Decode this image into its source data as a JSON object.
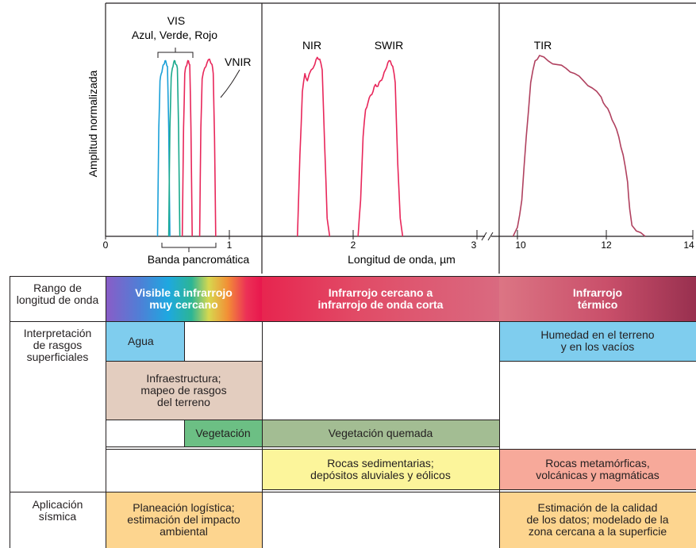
{
  "chart_data": {
    "type": "line",
    "ylabel": "Amplitud normalizada",
    "xlabel": "Longitud de onda, µm",
    "x_ticks_left": [
      "0",
      "1",
      "2",
      "3"
    ],
    "x_ticks_right": [
      "10",
      "12",
      "14"
    ],
    "annotations": {
      "vis": "VIS",
      "vis_sub": "Azul, Verde, Rojo",
      "vnir": "VNIR",
      "nir": "NIR",
      "swir": "SWIR",
      "tir": "TIR",
      "pan": "Banda pancromática"
    },
    "series": [
      {
        "color": "#1aa0d8",
        "x": [
          0.42,
          0.43,
          0.44,
          0.45,
          0.46,
          0.47,
          0.48,
          0.49,
          0.5,
          0.51,
          0.52
        ],
        "y": [
          0,
          0.6,
          0.86,
          0.9,
          0.93,
          0.95,
          0.97,
          0.96,
          0.94,
          0.6,
          0
        ]
      },
      {
        "color": "#19a98d",
        "x": [
          0.51,
          0.52,
          0.53,
          0.54,
          0.55,
          0.56,
          0.57,
          0.58,
          0.59,
          0.6
        ],
        "y": [
          0,
          0.6,
          0.88,
          0.93,
          0.96,
          0.97,
          0.95,
          0.93,
          0.6,
          0
        ]
      },
      {
        "color": "#e8265a",
        "x": [
          0.62,
          0.63,
          0.64,
          0.65,
          0.66,
          0.67,
          0.68,
          0.69,
          0.7
        ],
        "y": [
          0,
          0.6,
          0.9,
          0.94,
          0.96,
          0.97,
          0.95,
          0.6,
          0
        ]
      },
      {
        "color": "#e8265a",
        "x": [
          0.76,
          0.77,
          0.78,
          0.8,
          0.82,
          0.84,
          0.86,
          0.87,
          0.88,
          0.89
        ],
        "y": [
          0,
          0.6,
          0.87,
          0.93,
          0.96,
          0.98,
          0.95,
          0.9,
          0.55,
          0
        ]
      },
      {
        "color": "#e8265a",
        "x": [
          1.55,
          1.57,
          1.59,
          1.61,
          1.63,
          1.66,
          1.69,
          1.71,
          1.73,
          1.75,
          1.77,
          1.79,
          1.81
        ],
        "y": [
          0,
          0.45,
          0.8,
          0.9,
          0.86,
          0.92,
          0.95,
          0.99,
          0.98,
          0.92,
          0.5,
          0.1,
          0
        ]
      },
      {
        "color": "#e8265a",
        "x": [
          2.04,
          2.06,
          2.08,
          2.1,
          2.12,
          2.14,
          2.16,
          2.18,
          2.2,
          2.22,
          2.24,
          2.26,
          2.28,
          2.3,
          2.32,
          2.34,
          2.36,
          2.38,
          2.4
        ],
        "y": [
          0,
          0.2,
          0.55,
          0.7,
          0.74,
          0.78,
          0.8,
          0.84,
          0.83,
          0.86,
          0.88,
          0.92,
          0.96,
          0.97,
          0.94,
          0.85,
          0.4,
          0.1,
          0
        ]
      },
      {
        "color": "#b0415f",
        "x": [
          9.9,
          10.0,
          10.1,
          10.2,
          10.3,
          10.4,
          10.5,
          10.7,
          10.9,
          11.1,
          11.3,
          11.5,
          11.7,
          11.9,
          12.0,
          12.1,
          12.2,
          12.3,
          12.4,
          12.5,
          12.55,
          12.6,
          12.7,
          12.8,
          12.9
        ],
        "y": [
          0,
          0.05,
          0.2,
          0.55,
          0.85,
          0.97,
          1.0,
          0.97,
          0.95,
          0.93,
          0.9,
          0.86,
          0.82,
          0.77,
          0.72,
          0.68,
          0.62,
          0.55,
          0.45,
          0.3,
          0.15,
          0.06,
          0.03,
          0.02,
          0
        ]
      }
    ]
  },
  "table": {
    "rows": {
      "range": "Rango de\nlongitud de onda",
      "interp": "Interpretación\nde rasgos\nsuperficiales",
      "seismic": "Aplicación\nsísmica"
    },
    "bands": {
      "vnir": "Visible a infrarrojo\nmuy cercano",
      "nir_swir": "Infrarrojo cercano a\ninfrarrojo de onda corta",
      "tir": "Infrarrojo\ntérmico"
    },
    "cells": {
      "agua": "Agua",
      "humedad": "Humedad en el terreno\ny en los vacíos",
      "infra": "Infraestructura;\nmapeo de rasgos\ndel terreno",
      "vegetacion": "Vegetación",
      "veg_quemada": "Vegetación quemada",
      "rocas_sed": "Rocas sedimentarias;\ndepósitos aluviales y eólicos",
      "rocas_met": "Rocas metamórficas,\nvolcánicas y magmáticas",
      "planeacion": "Planeación logística;\nestimación del impacto\nambiental",
      "estimacion": "Estimación de la calidad\nde los datos; modelado de la\nzona cercana a la superficie"
    },
    "colors": {
      "agua": "#7fcdee",
      "infra": "#e3cdbf",
      "vegetacion": "#6cbf84",
      "veg_quemada": "#a3bd93",
      "rocas_sed": "#fcf59b",
      "rocas_met": "#f7a99a",
      "planeacion": "#fdd58f"
    }
  }
}
